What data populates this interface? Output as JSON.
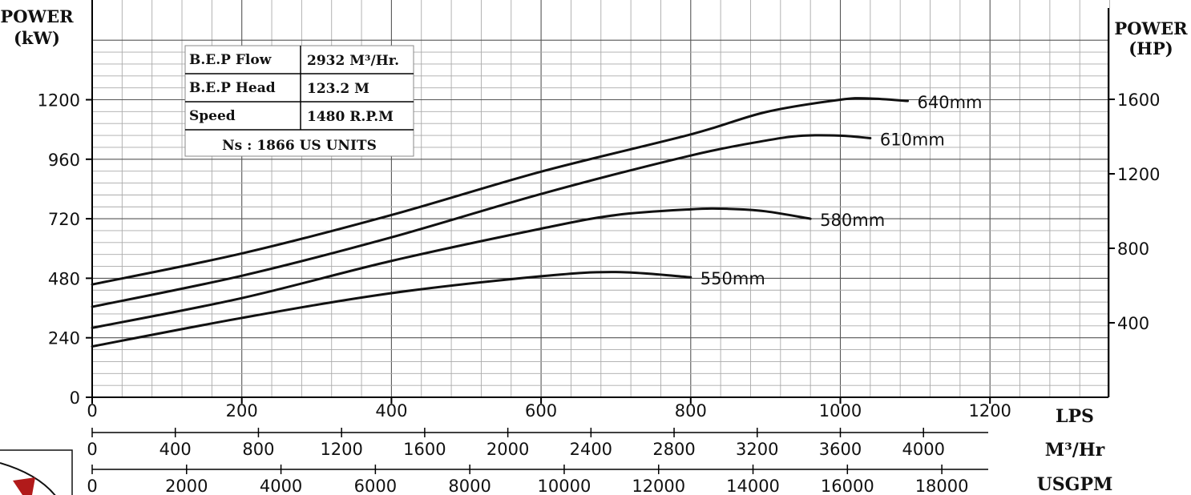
{
  "chart_data": {
    "type": "line",
    "ylabel_left": [
      "POWER",
      "(kW)"
    ],
    "ylabel_right": [
      "POWER",
      "(HP)"
    ],
    "xlim": [
      0,
      1360
    ],
    "ylim_kw": [
      0,
      1440
    ],
    "ylim_hp": [
      0,
      1600
    ],
    "grid": true,
    "y_ticks_kw": [
      0,
      240,
      480,
      720,
      960,
      1200
    ],
    "y_ticks_hp": [
      400,
      800,
      1200,
      1600
    ],
    "x_axes": [
      {
        "unit": "LPS",
        "ticks": [
          "0",
          "200",
          "400",
          "600",
          "800",
          "1000",
          "1200"
        ],
        "values": [
          0,
          200,
          400,
          600,
          800,
          1000,
          1200
        ]
      },
      {
        "unit": "M³/Hr",
        "ticks": [
          "0",
          "400",
          "800",
          "1200",
          "1600",
          "2000",
          "2400",
          "2800",
          "3200",
          "3600",
          "4000"
        ],
        "values": [
          0,
          400,
          800,
          1200,
          1600,
          2000,
          2400,
          2800,
          3200,
          3600,
          4000
        ]
      },
      {
        "unit": "USGPM",
        "ticks": [
          "0",
          "2000",
          "4000",
          "6000",
          "8000",
          "10000",
          "12000",
          "14000",
          "16000",
          "18000"
        ],
        "values": [
          0,
          2000,
          4000,
          6000,
          8000,
          10000,
          12000,
          14000,
          16000,
          18000
        ]
      }
    ],
    "series": [
      {
        "name": "640mm",
        "x": [
          0,
          200,
          400,
          600,
          800,
          900,
          1000,
          1040,
          1090
        ],
        "y": [
          455,
          580,
          735,
          910,
          1060,
          1150,
          1200,
          1205,
          1195
        ]
      },
      {
        "name": "610mm",
        "x": [
          0,
          200,
          400,
          600,
          800,
          900,
          950,
          1000,
          1040
        ],
        "y": [
          365,
          490,
          645,
          820,
          975,
          1035,
          1055,
          1055,
          1045
        ]
      },
      {
        "name": "580mm",
        "x": [
          0,
          200,
          400,
          600,
          700,
          800,
          850,
          900,
          960
        ],
        "y": [
          280,
          400,
          550,
          680,
          735,
          758,
          760,
          750,
          720
        ]
      },
      {
        "name": "550mm",
        "x": [
          0,
          200,
          400,
          600,
          700,
          800
        ],
        "y": [
          205,
          320,
          420,
          488,
          505,
          484
        ]
      }
    ],
    "table": {
      "rows": [
        {
          "label": "B.E.P Flow",
          "value": "2932 M³/Hr."
        },
        {
          "label": "B.E.P Head",
          "value": "123.2 M"
        },
        {
          "label": "Speed",
          "value": "1480 R.P.M"
        }
      ],
      "footer": "Ns : 1866 US UNITS"
    }
  }
}
